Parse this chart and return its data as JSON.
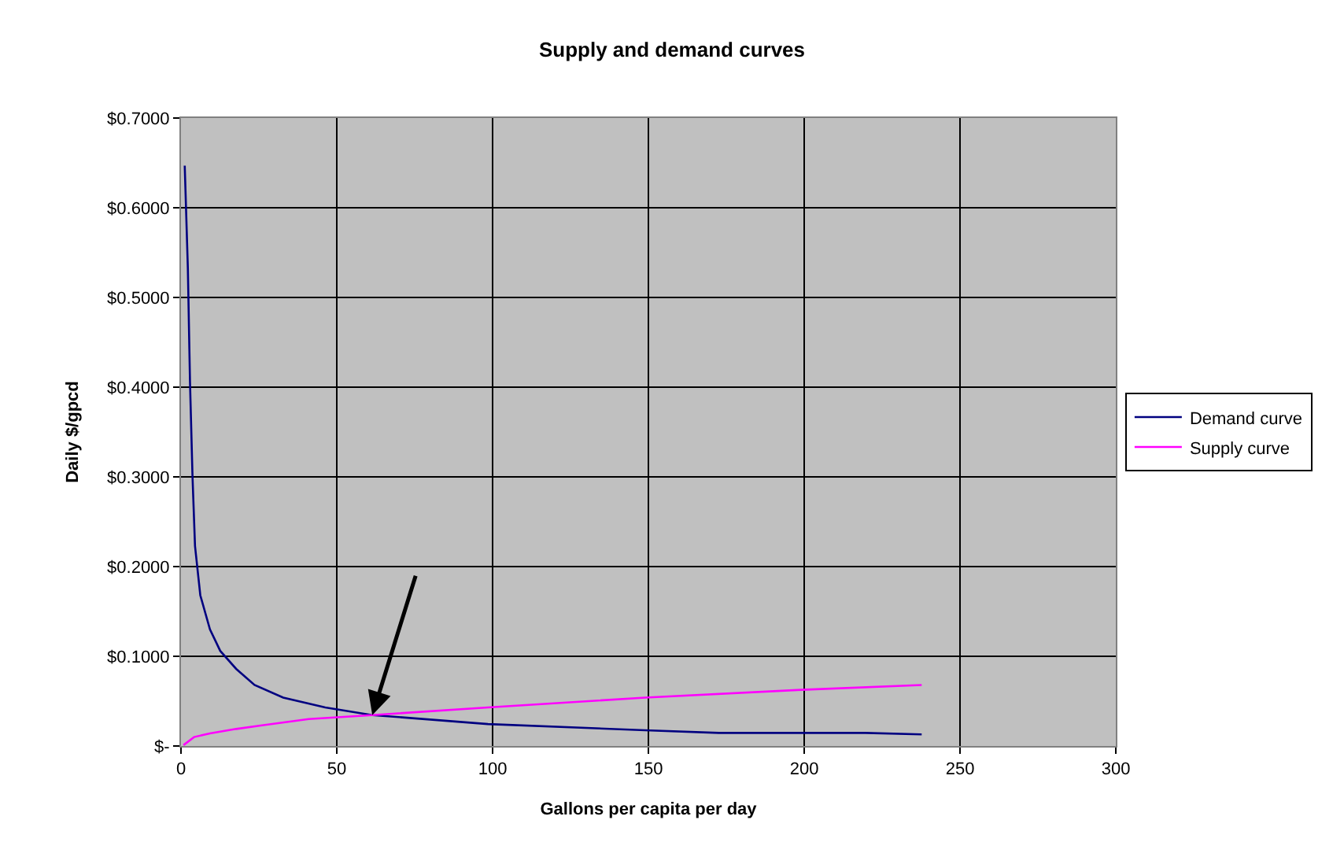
{
  "chart_data": {
    "type": "line",
    "title": "Supply and demand curves",
    "xlabel": "Gallons per capita per day",
    "ylabel": "Daily $/gpcd",
    "series": [
      {
        "name": "Demand curve",
        "color": "#000080",
        "x": [
          1.2,
          2.2,
          2.9,
          3.7,
          4.5,
          6.2,
          9.3,
          12.6,
          17.7,
          23.6,
          32.8,
          46.3,
          61.4,
          98.5,
          149,
          172.6,
          219.7,
          237.7
        ],
        "values": [
          0.647,
          0.533,
          0.405,
          0.3,
          0.223,
          0.168,
          0.13,
          0.106,
          0.086,
          0.068,
          0.054,
          0.043,
          0.0345,
          0.0245,
          0.0175,
          0.0146,
          0.0146,
          0.0129
        ]
      },
      {
        "name": "Supply curve",
        "color": "#ff00ff",
        "x": [
          0.8,
          4.2,
          9.3,
          17.7,
          26,
          41,
          61.4,
          98.5,
          149,
          199,
          237.7
        ],
        "values": [
          0.001,
          0.01,
          0.014,
          0.019,
          0.023,
          0.03,
          0.0345,
          0.043,
          0.054,
          0.0626,
          0.068
        ]
      }
    ],
    "xlim": [
      0,
      300
    ],
    "xticks": [
      0,
      50,
      100,
      150,
      200,
      250,
      300
    ],
    "ylim": [
      0,
      0.7
    ],
    "yticks": [
      {
        "value": 0,
        "label": "$-"
      },
      {
        "value": 0.1,
        "label": "$0.1000"
      },
      {
        "value": 0.2,
        "label": "$0.2000"
      },
      {
        "value": 0.3,
        "label": "$0.3000"
      },
      {
        "value": 0.4,
        "label": "$0.4000"
      },
      {
        "value": 0.5,
        "label": "$0.5000"
      },
      {
        "value": 0.6,
        "label": "$0.6000"
      },
      {
        "value": 0.7,
        "label": "$0.7000"
      }
    ],
    "grid": true,
    "legend": "right",
    "marker": "none",
    "line_style": "solid"
  }
}
